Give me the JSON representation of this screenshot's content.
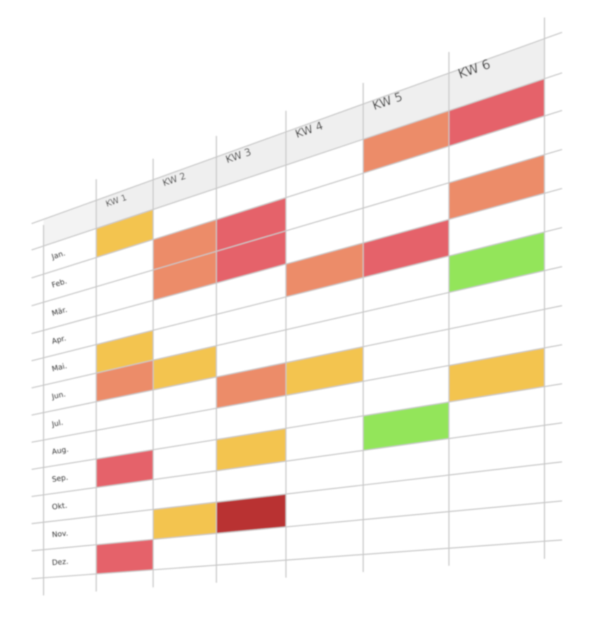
{
  "table": {
    "columns": [
      "KW 1",
      "KW 2",
      "KW 3",
      "KW 4",
      "KW 5",
      "KW 6"
    ],
    "rows": [
      "Jan.",
      "Feb.",
      "Mär.",
      "Apr.",
      "Mai.",
      "Jun.",
      "Jul.",
      "Aug.",
      "Sep.",
      "Okt.",
      "Nov.",
      "Dez."
    ],
    "cells": [
      [
        "#f3c450",
        null,
        null,
        null,
        "#ec8c69",
        "#e5626b"
      ],
      [
        null,
        "#ec8c69",
        "#e5626b",
        null,
        null,
        null
      ],
      [
        null,
        "#ec8c69",
        "#e5626b",
        null,
        null,
        "#ec8c69"
      ],
      [
        null,
        null,
        null,
        "#ec8c69",
        "#e5626b",
        null
      ],
      [
        "#f3c450",
        null,
        null,
        null,
        null,
        "#93e55a"
      ],
      [
        "#ec8c69",
        "#f3c450",
        null,
        null,
        null,
        null
      ],
      [
        null,
        null,
        "#ec8c69",
        "#f3c450",
        null,
        null
      ],
      [
        null,
        null,
        null,
        null,
        null,
        "#f3c450"
      ],
      [
        "#e5626b",
        null,
        "#f3c450",
        null,
        "#93e55a",
        null
      ],
      [
        null,
        null,
        null,
        null,
        null,
        null
      ],
      [
        null,
        "#f3c450",
        "#b93333",
        null,
        null,
        null
      ],
      [
        "#e5626b",
        null,
        null,
        null,
        null,
        null
      ]
    ]
  }
}
